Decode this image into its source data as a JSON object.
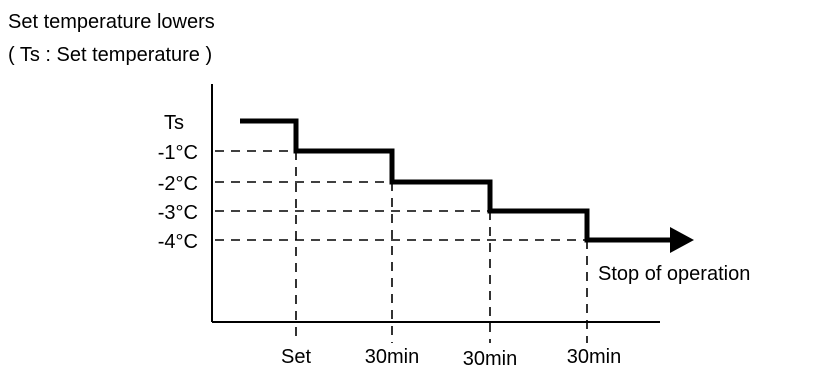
{
  "title": {
    "line1": "Set temperature lowers",
    "line2": "( Ts : Set temperature )"
  },
  "chart_data": {
    "type": "line",
    "levels": [
      "Ts",
      "-1°C",
      "-2°C",
      "-3°C",
      "-4°C"
    ],
    "time_labels": [
      "Set",
      "30min",
      "30min",
      "30min"
    ],
    "end_annotation": "Stop of operation",
    "colors": {
      "line": "#000000",
      "background": "#ffffff"
    }
  }
}
